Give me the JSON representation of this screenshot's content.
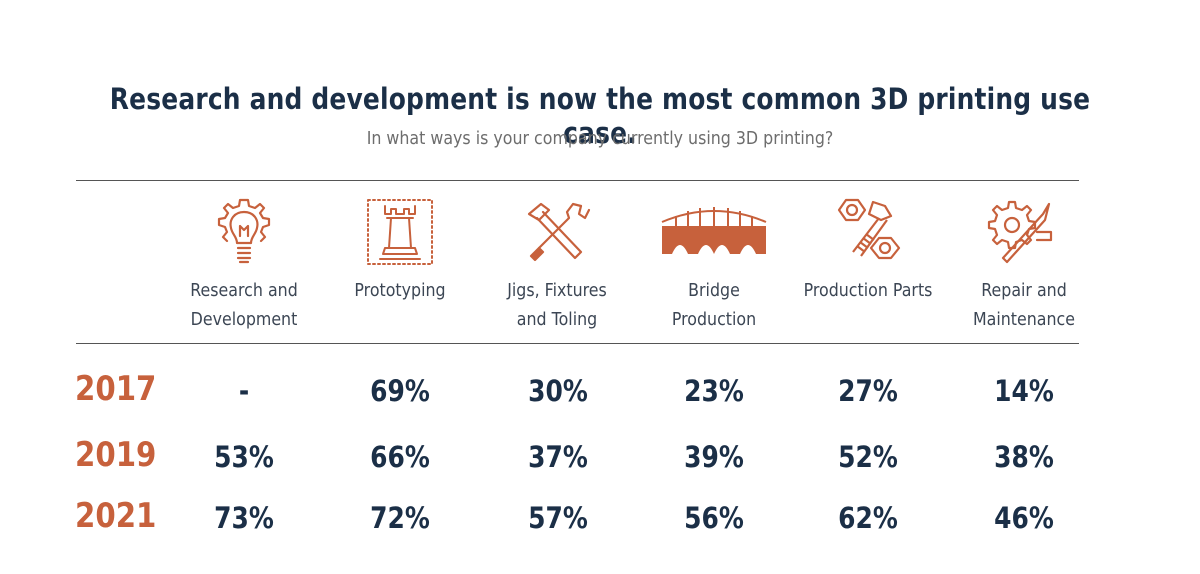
{
  "chart_data": {
    "type": "table",
    "title": "Research and development is now the most common 3D printing use case.",
    "subtitle": "In what ways is your company currently using 3D printing?",
    "categories": [
      {
        "label": "Research and Development",
        "icon": "lightbulb-gear-icon"
      },
      {
        "label": "Prototyping",
        "icon": "chess-rook-icon"
      },
      {
        "label": "Jigs, Fixtures and Toling",
        "icon": "tools-icon"
      },
      {
        "label": "Bridge Production",
        "icon": "bridge-icon"
      },
      {
        "label": "Production Parts",
        "icon": "nuts-bolt-icon"
      },
      {
        "label": "Repair and Maintenance",
        "icon": "gear-wrench-icon"
      }
    ],
    "series": [
      {
        "name": "2017",
        "values": [
          "-",
          "69%",
          "30%",
          "23%",
          "27%",
          "14%"
        ]
      },
      {
        "name": "2019",
        "values": [
          "53%",
          "66%",
          "37%",
          "39%",
          "52%",
          "38%"
        ]
      },
      {
        "name": "2021",
        "values": [
          "73%",
          "72%",
          "57%",
          "56%",
          "62%",
          "46%"
        ]
      }
    ]
  },
  "colors": {
    "accent": "#c7613c",
    "title": "#1b2f47",
    "subtitle": "#6d6d6d",
    "value": "#1b2f47"
  }
}
